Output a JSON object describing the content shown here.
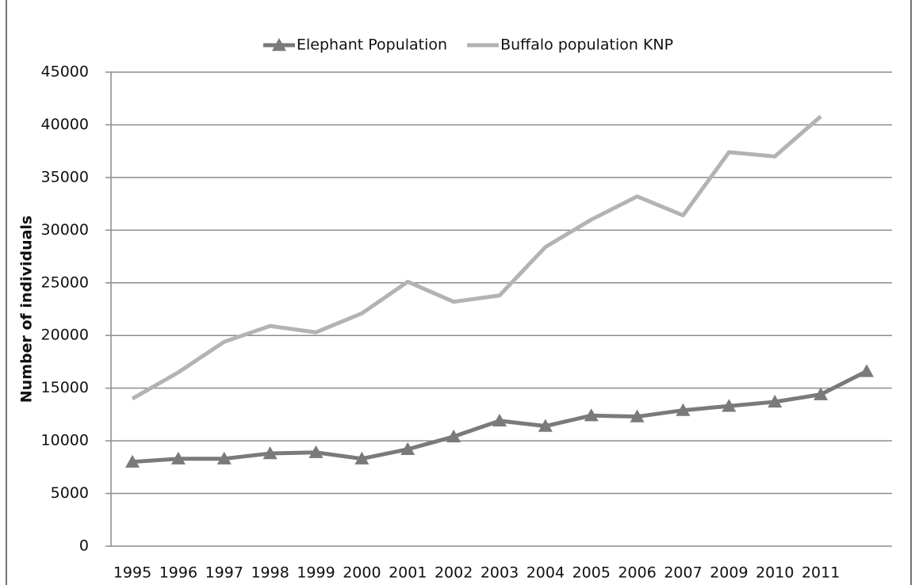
{
  "chart_data": {
    "type": "line",
    "y_label": "Number of individuals",
    "categories": [
      "1995",
      "1996",
      "1997",
      "1998",
      "1999",
      "2000",
      "2001",
      "2002",
      "2003",
      "2004",
      "2005",
      "2006",
      "2007",
      "2009",
      "2010",
      "2011",
      null
    ],
    "series": [
      {
        "name": "Elephant Population",
        "color": "#7a7a7a",
        "marker": "triangle",
        "values": [
          8000,
          8300,
          8300,
          8800,
          8900,
          8300,
          9200,
          10400,
          11900,
          11400,
          12400,
          12300,
          12900,
          13300,
          13700,
          14400,
          16600
        ]
      },
      {
        "name": "Buffalo population KNP",
        "color": "#b3b3b3",
        "marker": "none",
        "values": [
          14000,
          16500,
          19400,
          20900,
          20300,
          22100,
          25100,
          23200,
          23800,
          28400,
          31000,
          33200,
          31400,
          37400,
          37000,
          40800,
          null
        ]
      }
    ],
    "ylim": [
      0,
      45000
    ],
    "yticks": [
      0,
      5000,
      10000,
      15000,
      20000,
      25000,
      30000,
      35000,
      40000,
      45000
    ],
    "grid": true
  }
}
